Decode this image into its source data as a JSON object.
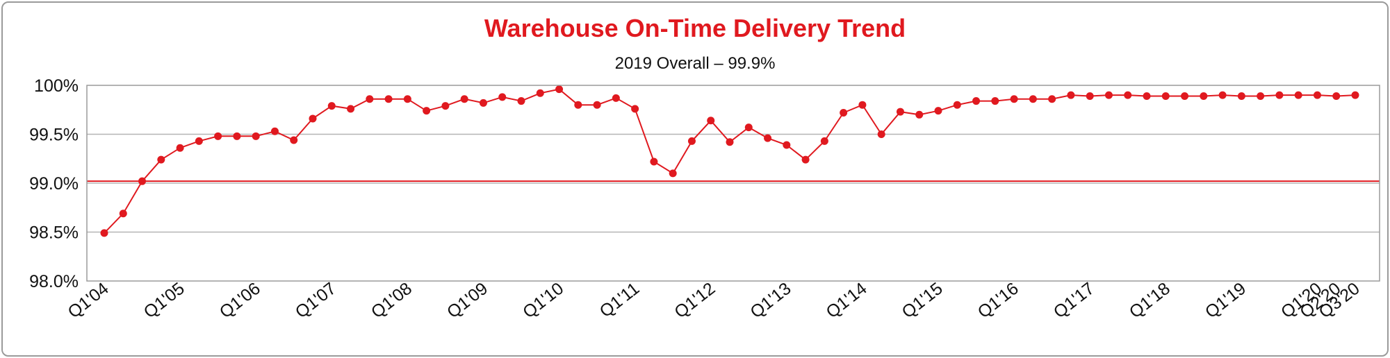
{
  "chart_data": {
    "type": "line",
    "title": "Warehouse On-Time Delivery Trend",
    "subtitle": "2019 Overall – 99.9%",
    "xlabel": "",
    "ylabel": "",
    "ylim": [
      98.0,
      100.0
    ],
    "y_ticks": [
      {
        "value": 98.0,
        "label": "98.0%"
      },
      {
        "value": 98.5,
        "label": "98.5%"
      },
      {
        "value": 99.0,
        "label": "99.0%"
      },
      {
        "value": 99.5,
        "label": "99.5%"
      },
      {
        "value": 100.0,
        "label": "100%"
      }
    ],
    "x_tick_labels": [
      {
        "index": 0,
        "label": "Q1'04"
      },
      {
        "index": 4,
        "label": "Q1'05"
      },
      {
        "index": 8,
        "label": "Q1'06"
      },
      {
        "index": 12,
        "label": "Q1'07"
      },
      {
        "index": 16,
        "label": "Q1'08"
      },
      {
        "index": 20,
        "label": "Q1'09"
      },
      {
        "index": 24,
        "label": "Q1'10"
      },
      {
        "index": 28,
        "label": "Q1'11"
      },
      {
        "index": 32,
        "label": "Q1'12"
      },
      {
        "index": 36,
        "label": "Q1'13"
      },
      {
        "index": 40,
        "label": "Q1'14"
      },
      {
        "index": 44,
        "label": "Q1'15"
      },
      {
        "index": 48,
        "label": "Q1'16"
      },
      {
        "index": 52,
        "label": "Q1'17"
      },
      {
        "index": 56,
        "label": "Q1'18"
      },
      {
        "index": 60,
        "label": "Q1'19"
      },
      {
        "index": 64,
        "label": "Q1'20"
      },
      {
        "index": 65,
        "label": "Q2'20"
      },
      {
        "index": 66,
        "label": "Q3'20"
      }
    ],
    "target_line": {
      "value": 99.02,
      "color": "#e0191f"
    },
    "grid": true,
    "legend": "none",
    "series": [
      {
        "color": "#e0191f",
        "values": [
          98.49,
          98.69,
          99.02,
          99.24,
          99.36,
          99.43,
          99.48,
          99.48,
          99.48,
          99.53,
          99.44,
          99.66,
          99.79,
          99.76,
          99.86,
          99.86,
          99.86,
          99.74,
          99.79,
          99.86,
          99.82,
          99.88,
          99.84,
          99.92,
          99.96,
          99.8,
          99.8,
          99.87,
          99.76,
          99.22,
          99.1,
          99.43,
          99.64,
          99.42,
          99.57,
          99.46,
          99.39,
          99.24,
          99.43,
          99.72,
          99.8,
          99.5,
          99.73,
          99.7,
          99.74,
          99.8,
          99.84,
          99.84,
          99.86,
          99.86,
          99.86,
          99.9,
          99.89,
          99.9,
          99.9,
          99.89,
          99.89,
          99.89,
          99.89,
          99.9,
          99.89,
          99.89,
          99.9,
          99.9,
          99.9,
          99.89,
          99.9
        ]
      }
    ]
  }
}
